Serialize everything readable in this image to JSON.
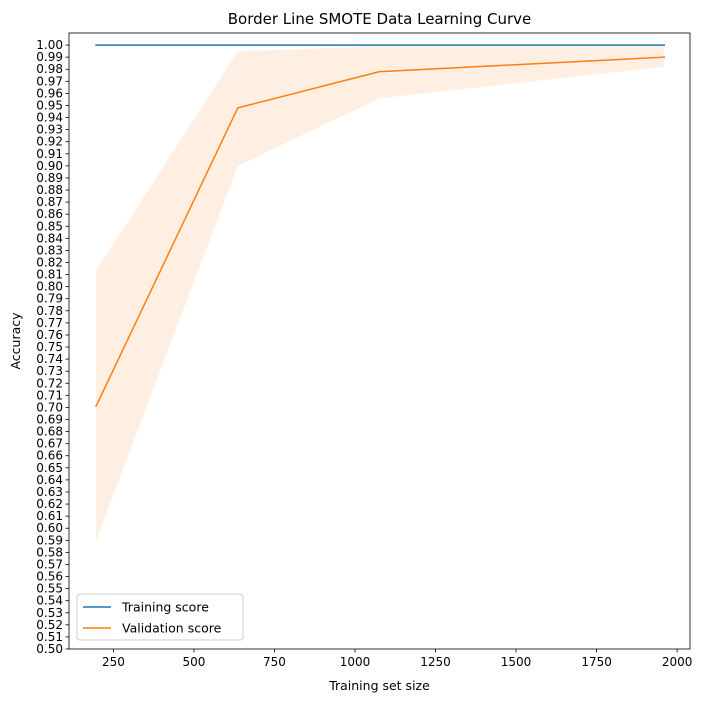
{
  "chart_data": {
    "type": "line",
    "title": "Border Line SMOTE Data Learning Curve",
    "xlabel": "Training set size",
    "ylabel": "Accuracy",
    "xlim": [
      112,
      2040
    ],
    "ylim": [
      0.5,
      1.01
    ],
    "xticks": [
      250,
      500,
      750,
      1000,
      1250,
      1500,
      1750,
      2000
    ],
    "yticks": [
      0.5,
      0.51,
      0.52,
      0.53,
      0.54,
      0.55,
      0.56,
      0.57,
      0.58,
      0.59,
      0.6,
      0.61,
      0.62,
      0.63,
      0.64,
      0.65,
      0.66,
      0.67,
      0.68,
      0.69,
      0.7,
      0.71,
      0.72,
      0.73,
      0.74,
      0.75,
      0.76,
      0.77,
      0.78,
      0.79,
      0.8,
      0.81,
      0.82,
      0.83,
      0.84,
      0.85,
      0.86,
      0.87,
      0.88,
      0.89,
      0.9,
      0.91,
      0.92,
      0.93,
      0.94,
      0.95,
      0.96,
      0.97,
      0.98,
      0.99,
      1.0
    ],
    "x": [
      196,
      636,
      1076,
      1960
    ],
    "series": [
      {
        "name": "Training score",
        "color": "#1f77b4",
        "values": [
          1.0,
          1.0,
          1.0,
          1.0
        ],
        "band_lower": [
          1.0,
          1.0,
          1.0,
          1.0
        ],
        "band_upper": [
          1.0,
          1.0,
          1.0,
          1.0
        ]
      },
      {
        "name": "Validation score",
        "color": "#ff7f0e",
        "values": [
          0.701,
          0.948,
          0.978,
          0.99
        ],
        "band_lower": [
          0.59,
          0.9,
          0.956,
          0.982
        ],
        "band_upper": [
          0.813,
          0.995,
          0.999,
          0.999
        ]
      }
    ],
    "band_fill_color": "#ff7f0e",
    "band_fill_opacity": 0.12,
    "legend_position": "lower-left",
    "grid": false
  }
}
